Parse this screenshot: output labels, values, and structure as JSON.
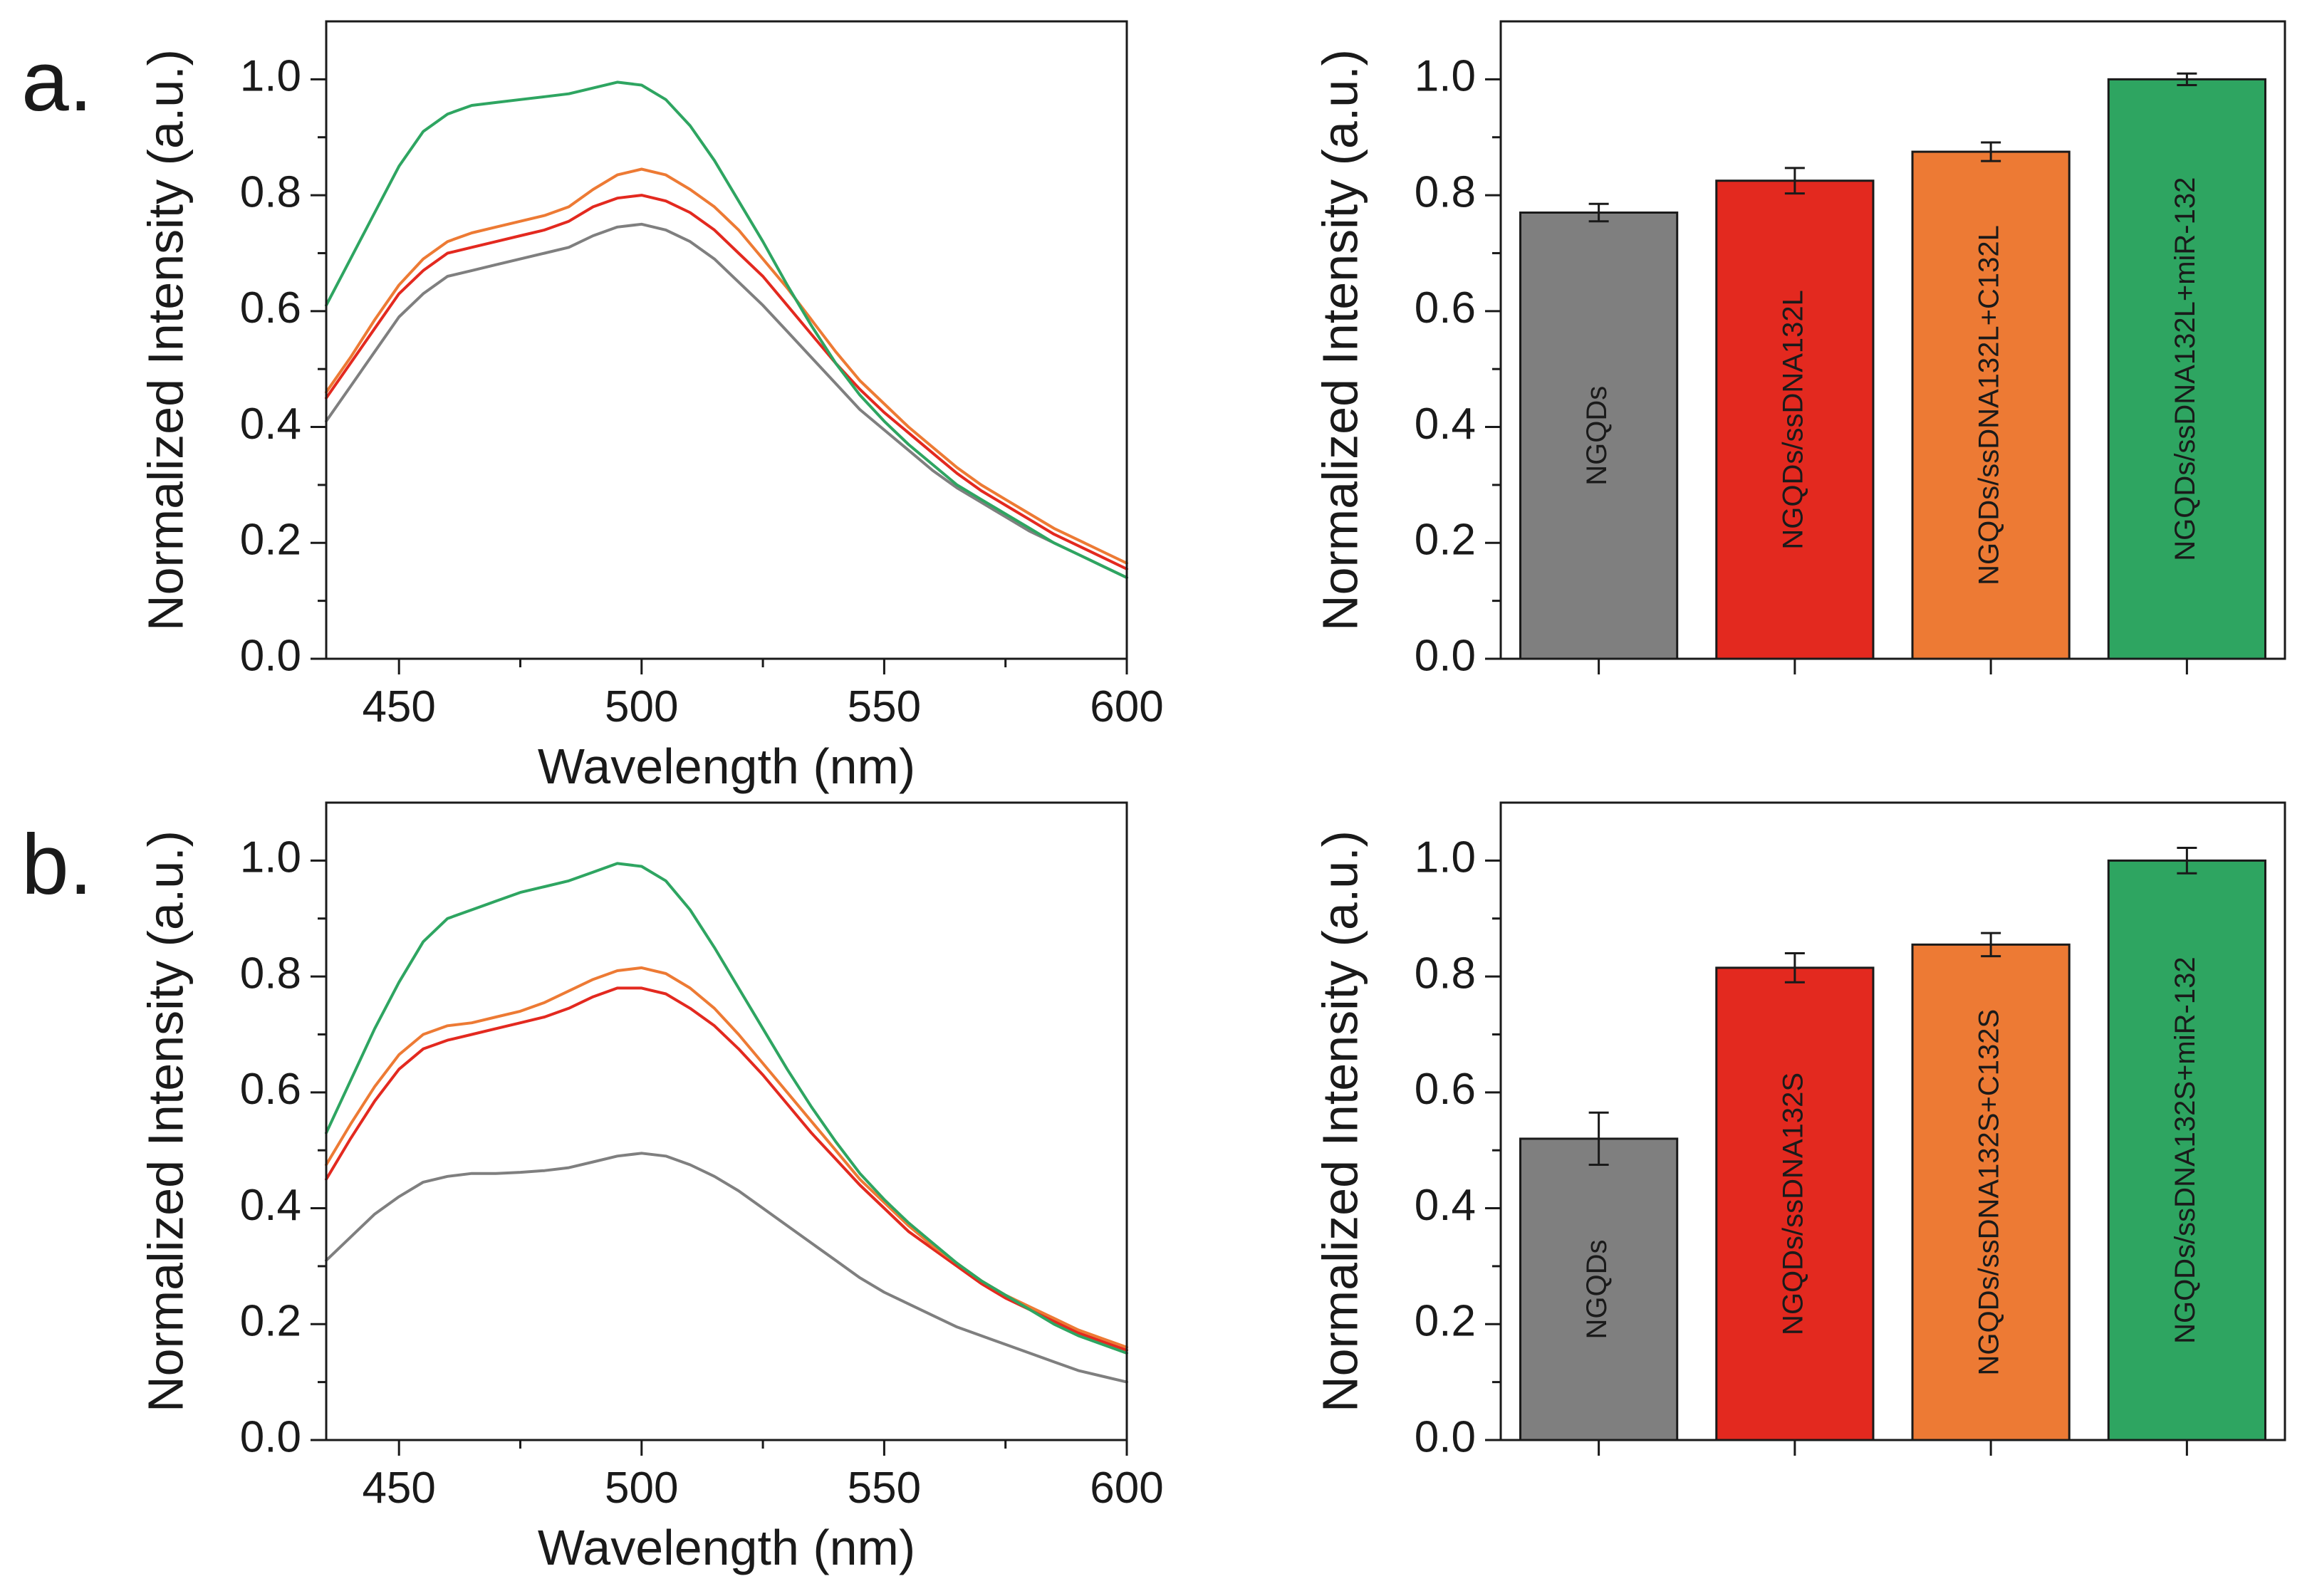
{
  "panels": [
    {
      "label": "a."
    },
    {
      "label": "b."
    }
  ],
  "colors": {
    "gray": "#7f7f7f",
    "red": "#e3291f",
    "orange": "#ed7a34",
    "green": "#2ea561",
    "axis": "#1a1a1a"
  },
  "chart_data": [
    {
      "id": "a-spectra",
      "type": "line",
      "xlabel": "Wavelength (nm)",
      "ylabel": "Normalized Intensity (a.u.)",
      "xlim": [
        435,
        600
      ],
      "ylim": [
        0,
        1.1
      ],
      "xticks": [
        450,
        500,
        550,
        600
      ],
      "yticks": [
        0.0,
        0.2,
        0.4,
        0.6,
        0.8,
        1.0
      ],
      "ytick_labels": [
        "0.0",
        "0.2",
        "0.4",
        "0.6",
        "0.8",
        "1.0"
      ],
      "x": [
        435,
        440,
        445,
        450,
        455,
        460,
        465,
        470,
        475,
        480,
        485,
        490,
        495,
        500,
        505,
        510,
        515,
        520,
        525,
        530,
        535,
        540,
        545,
        550,
        555,
        560,
        565,
        570,
        575,
        580,
        585,
        590,
        595,
        600
      ],
      "series": [
        {
          "name": "NGQDs",
          "color": "gray",
          "values": [
            0.41,
            0.47,
            0.53,
            0.59,
            0.63,
            0.66,
            0.67,
            0.68,
            0.69,
            0.7,
            0.71,
            0.73,
            0.745,
            0.75,
            0.74,
            0.72,
            0.69,
            0.65,
            0.61,
            0.565,
            0.52,
            0.475,
            0.43,
            0.395,
            0.36,
            0.325,
            0.295,
            0.27,
            0.245,
            0.22,
            0.2,
            0.18,
            0.16,
            0.14
          ]
        },
        {
          "name": "NGQDs/ssDNA132L",
          "color": "red",
          "values": [
            0.45,
            0.51,
            0.57,
            0.63,
            0.67,
            0.7,
            0.71,
            0.72,
            0.73,
            0.74,
            0.755,
            0.78,
            0.795,
            0.8,
            0.79,
            0.77,
            0.74,
            0.7,
            0.66,
            0.61,
            0.56,
            0.51,
            0.465,
            0.425,
            0.39,
            0.355,
            0.32,
            0.29,
            0.265,
            0.24,
            0.215,
            0.195,
            0.175,
            0.155
          ]
        },
        {
          "name": "NGQDs/ssDNA132L+C132L",
          "color": "orange",
          "values": [
            0.46,
            0.52,
            0.585,
            0.645,
            0.69,
            0.72,
            0.735,
            0.745,
            0.755,
            0.765,
            0.78,
            0.81,
            0.835,
            0.845,
            0.835,
            0.81,
            0.78,
            0.74,
            0.69,
            0.64,
            0.585,
            0.53,
            0.48,
            0.44,
            0.4,
            0.365,
            0.33,
            0.3,
            0.275,
            0.25,
            0.225,
            0.205,
            0.185,
            0.165
          ]
        },
        {
          "name": "NGQDs/ssDNA132L+miR-132",
          "color": "green",
          "values": [
            0.61,
            0.69,
            0.77,
            0.85,
            0.91,
            0.94,
            0.955,
            0.96,
            0.965,
            0.97,
            0.975,
            0.985,
            0.995,
            0.99,
            0.965,
            0.92,
            0.86,
            0.79,
            0.72,
            0.645,
            0.575,
            0.51,
            0.455,
            0.41,
            0.37,
            0.335,
            0.3,
            0.275,
            0.25,
            0.225,
            0.2,
            0.18,
            0.16,
            0.14
          ]
        }
      ]
    },
    {
      "id": "a-bars",
      "type": "bar",
      "ylabel": "Normalized Intensity (a.u.)",
      "ylim": [
        0,
        1.1
      ],
      "yticks": [
        0.0,
        0.2,
        0.4,
        0.6,
        0.8,
        1.0
      ],
      "ytick_labels": [
        "0.0",
        "0.2",
        "0.4",
        "0.6",
        "0.8",
        "1.0"
      ],
      "categories": [
        "NGQDs",
        "NGQDs/ssDNA132L",
        "NGQDs/ssDNA132L+C132L",
        "NGQDs/ssDNA132L+miR-132"
      ],
      "values": [
        0.77,
        0.825,
        0.875,
        1.0
      ],
      "errors": [
        0.015,
        0.022,
        0.016,
        0.01
      ],
      "bar_colors": [
        "gray",
        "red",
        "orange",
        "green"
      ]
    },
    {
      "id": "b-spectra",
      "type": "line",
      "xlabel": "Wavelength (nm)",
      "ylabel": "Normalized Intensity (a.u.)",
      "xlim": [
        435,
        600
      ],
      "ylim": [
        0,
        1.1
      ],
      "xticks": [
        450,
        500,
        550,
        600
      ],
      "yticks": [
        0.0,
        0.2,
        0.4,
        0.6,
        0.8,
        1.0
      ],
      "ytick_labels": [
        "0.0",
        "0.2",
        "0.4",
        "0.6",
        "0.8",
        "1.0"
      ],
      "x": [
        435,
        440,
        445,
        450,
        455,
        460,
        465,
        470,
        475,
        480,
        485,
        490,
        495,
        500,
        505,
        510,
        515,
        520,
        525,
        530,
        535,
        540,
        545,
        550,
        555,
        560,
        565,
        570,
        575,
        580,
        585,
        590,
        595,
        600
      ],
      "series": [
        {
          "name": "NGQDs",
          "color": "gray",
          "values": [
            0.31,
            0.35,
            0.39,
            0.42,
            0.445,
            0.455,
            0.46,
            0.46,
            0.462,
            0.465,
            0.47,
            0.48,
            0.49,
            0.495,
            0.49,
            0.475,
            0.455,
            0.43,
            0.4,
            0.37,
            0.34,
            0.31,
            0.28,
            0.255,
            0.235,
            0.215,
            0.195,
            0.18,
            0.165,
            0.15,
            0.135,
            0.12,
            0.11,
            0.1
          ]
        },
        {
          "name": "NGQDs/ssDNA132S",
          "color": "red",
          "values": [
            0.45,
            0.52,
            0.585,
            0.64,
            0.675,
            0.69,
            0.7,
            0.71,
            0.72,
            0.73,
            0.745,
            0.765,
            0.78,
            0.78,
            0.77,
            0.745,
            0.715,
            0.675,
            0.63,
            0.58,
            0.53,
            0.485,
            0.44,
            0.4,
            0.36,
            0.33,
            0.3,
            0.27,
            0.245,
            0.225,
            0.205,
            0.185,
            0.17,
            0.155
          ]
        },
        {
          "name": "NGQDs/ssDNA132S+C132S",
          "color": "orange",
          "values": [
            0.475,
            0.545,
            0.61,
            0.665,
            0.7,
            0.715,
            0.72,
            0.73,
            0.74,
            0.755,
            0.775,
            0.795,
            0.81,
            0.815,
            0.805,
            0.78,
            0.745,
            0.7,
            0.65,
            0.6,
            0.55,
            0.5,
            0.45,
            0.41,
            0.37,
            0.335,
            0.305,
            0.275,
            0.25,
            0.23,
            0.21,
            0.19,
            0.175,
            0.16
          ]
        },
        {
          "name": "NGQDs/ssDNA132S+miR-132",
          "color": "green",
          "values": [
            0.53,
            0.62,
            0.71,
            0.79,
            0.86,
            0.9,
            0.915,
            0.93,
            0.945,
            0.955,
            0.965,
            0.98,
            0.995,
            0.99,
            0.965,
            0.915,
            0.85,
            0.78,
            0.71,
            0.64,
            0.575,
            0.515,
            0.46,
            0.415,
            0.375,
            0.34,
            0.305,
            0.275,
            0.25,
            0.225,
            0.2,
            0.18,
            0.165,
            0.15
          ]
        }
      ]
    },
    {
      "id": "b-bars",
      "type": "bar",
      "ylabel": "Normalized Intensity (a.u.)",
      "ylim": [
        0,
        1.1
      ],
      "yticks": [
        0.0,
        0.2,
        0.4,
        0.6,
        0.8,
        1.0
      ],
      "ytick_labels": [
        "0.0",
        "0.2",
        "0.4",
        "0.6",
        "0.8",
        "1.0"
      ],
      "categories": [
        "NGQDs",
        "NGQDs/ssDNA132S",
        "NGQDs/ssDNA132S+C132S",
        "NGQDs/ssDNA132S+miR-132"
      ],
      "values": [
        0.52,
        0.815,
        0.855,
        1.0
      ],
      "errors": [
        0.045,
        0.025,
        0.02,
        0.022
      ],
      "bar_colors": [
        "gray",
        "red",
        "orange",
        "green"
      ]
    }
  ]
}
